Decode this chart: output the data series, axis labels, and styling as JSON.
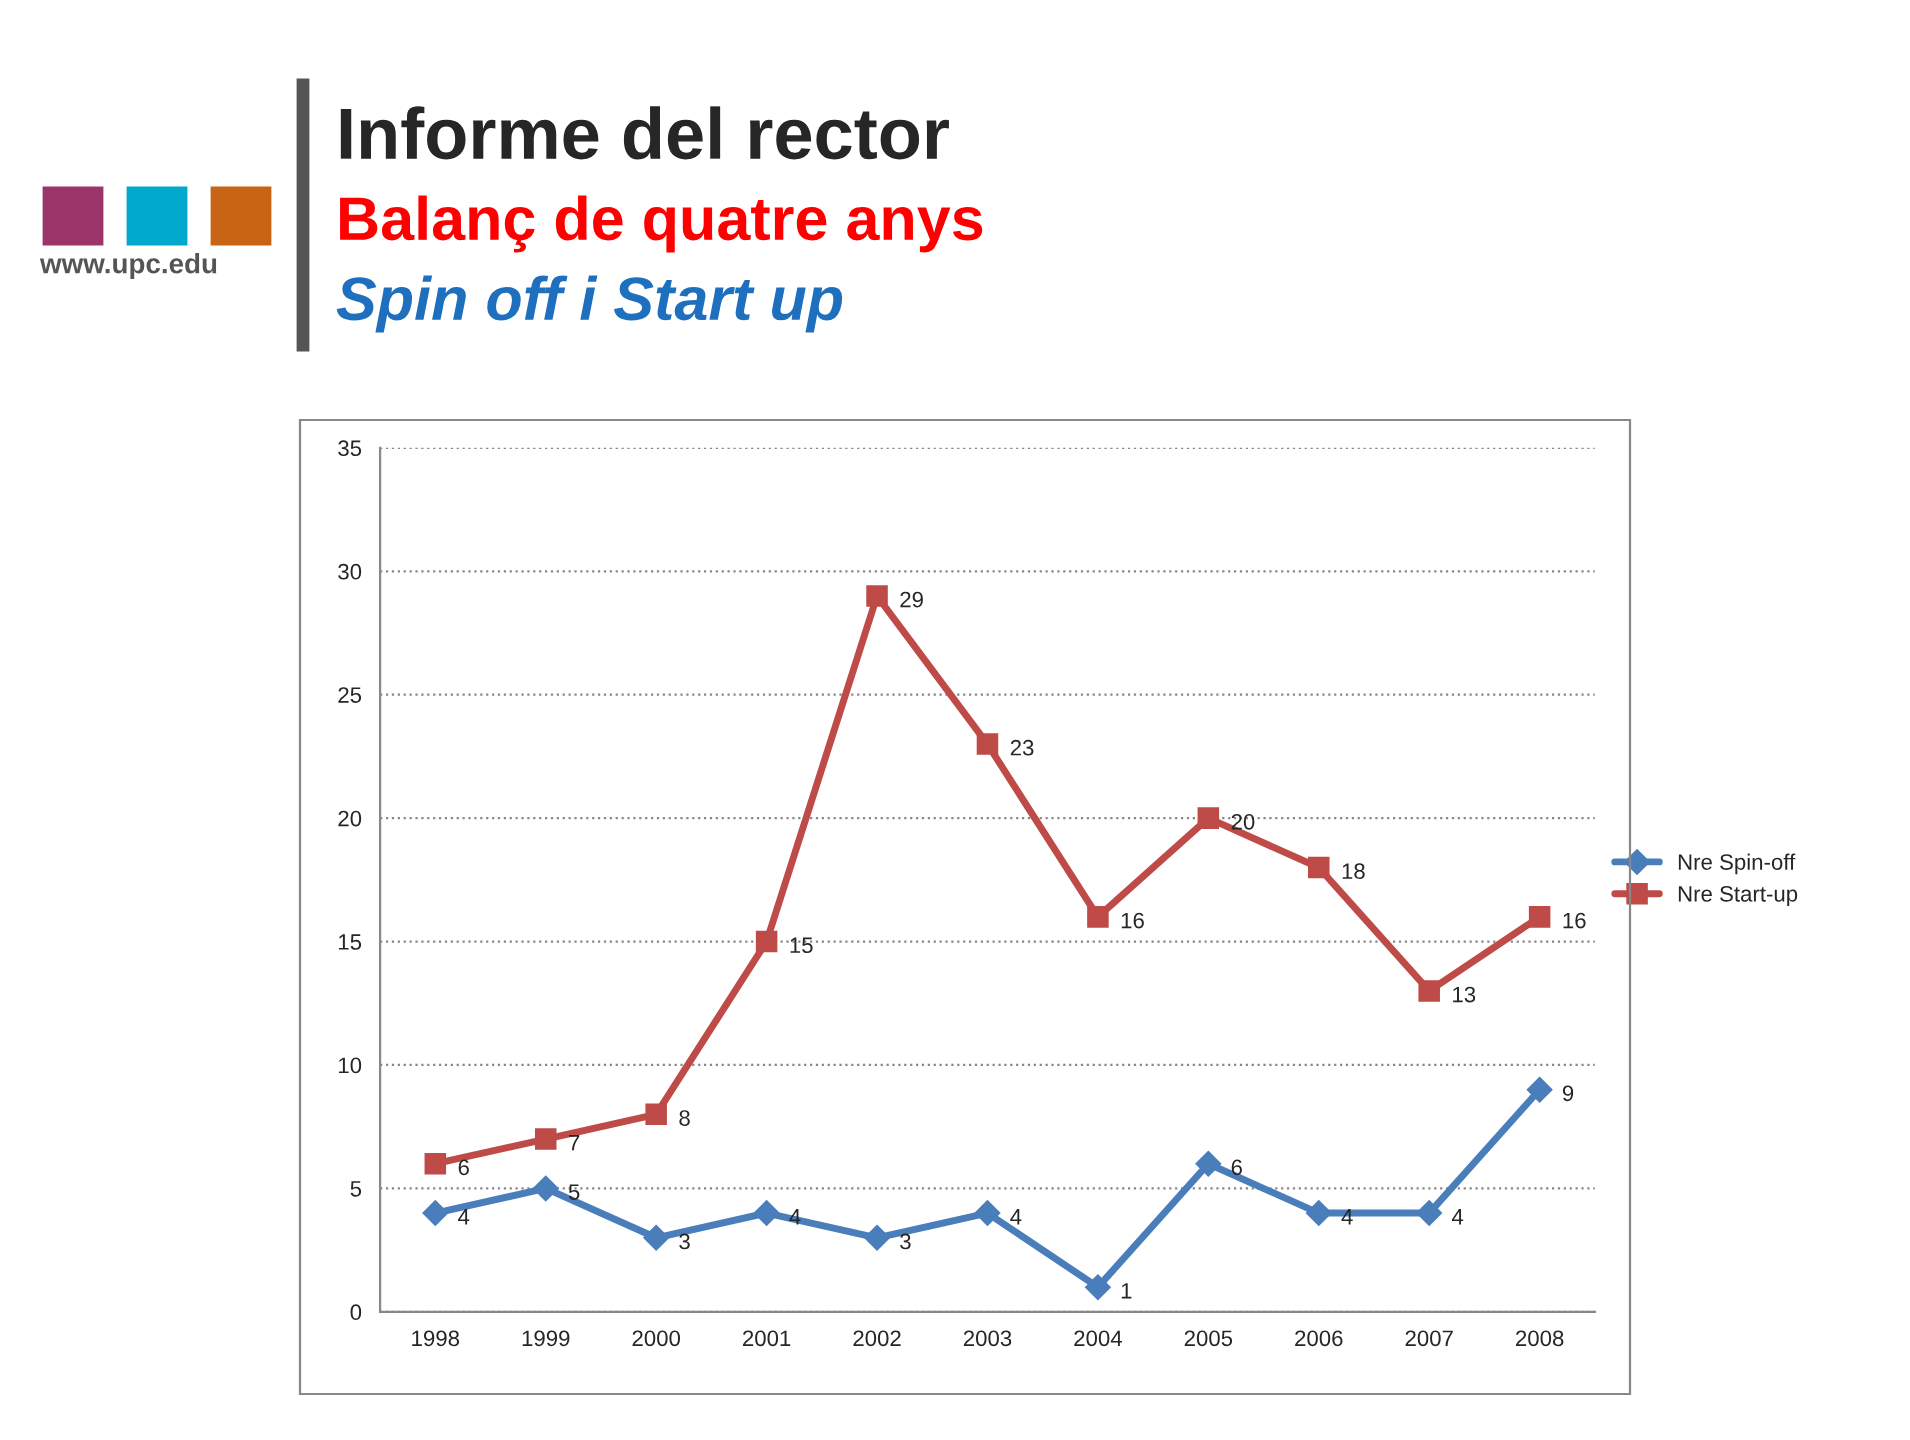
{
  "chart_data": {
    "type": "line",
    "title": "Informe del rector",
    "subtitle": "Balanç de quatre anys",
    "annotations": [
      "Spin off i Start up",
      "www.upc.edu"
    ],
    "categories": [
      "1998",
      "1999",
      "2000",
      "2001",
      "2002",
      "2003",
      "2004",
      "2005",
      "2006",
      "2007",
      "2008"
    ],
    "series": [
      {
        "name": "Nre Spin-off",
        "color": "#4a7ebb",
        "marker": "diamond",
        "values": [
          4,
          5,
          3,
          4,
          3,
          4,
          1,
          6,
          4,
          4,
          9
        ]
      },
      {
        "name": "Nre Start-up",
        "color": "#be4b48",
        "marker": "square",
        "values": [
          6,
          7,
          8,
          15,
          29,
          23,
          16,
          20,
          18,
          13,
          16
        ]
      }
    ],
    "ylim": [
      0,
      35
    ],
    "yticks": [
      0,
      5,
      10,
      15,
      20,
      25,
      30,
      35
    ],
    "grid": "y",
    "legend": "right",
    "data_labels": true,
    "line_style": "solid"
  }
}
